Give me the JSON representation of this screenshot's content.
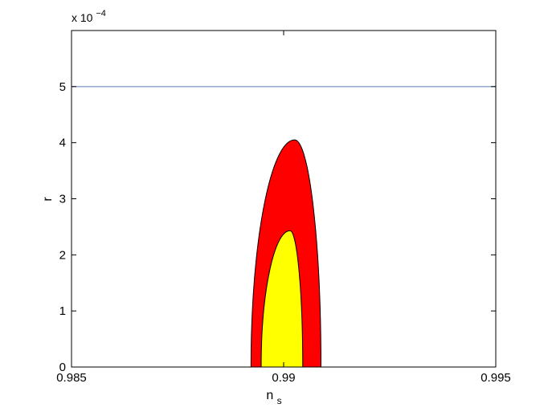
{
  "chart_data": {
    "type": "area",
    "title": "",
    "xlabel": "n",
    "xlabel_subscript": "s",
    "ylabel": "r",
    "y_exponent_label": "x 10",
    "y_exponent_power": "−4",
    "xlim": [
      0.985,
      0.995
    ],
    "ylim": [
      0,
      6
    ],
    "x_ticks": [
      0.985,
      0.99,
      0.995
    ],
    "x_tick_labels": [
      "0.985",
      "0.99",
      "0.995"
    ],
    "y_ticks": [
      0,
      1,
      2,
      3,
      4,
      5
    ],
    "y_tick_labels": [
      "0",
      "1",
      "2",
      "3",
      "4",
      "5"
    ],
    "grid": false,
    "reference_line": {
      "y": 5,
      "color": "#8aa0c8"
    },
    "contours": [
      {
        "level": "outer",
        "color": "#ff0000",
        "x_left": 0.98923,
        "x_right": 0.99088,
        "x_peak": 0.99026,
        "y_peak": 4.05
      },
      {
        "level": "inner",
        "color": "#ffff00",
        "x_left": 0.98947,
        "x_right": 0.99045,
        "x_peak": 0.99015,
        "y_peak": 2.43
      }
    ]
  }
}
